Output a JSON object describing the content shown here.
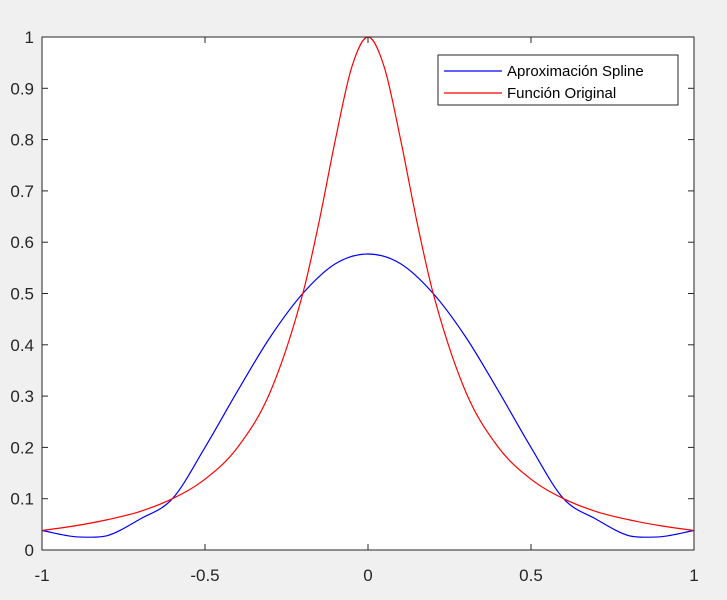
{
  "chart_data": {
    "type": "line",
    "title": "",
    "xlabel": "",
    "ylabel": "",
    "xlim": [
      -1,
      1
    ],
    "ylim": [
      0,
      1
    ],
    "grid": false,
    "legend_position": "top-right",
    "x_ticks": [
      -1,
      -0.5,
      0,
      0.5,
      1
    ],
    "x_tick_labels": [
      "-1",
      "-0.5",
      "0",
      "0.5",
      "1"
    ],
    "y_ticks": [
      0,
      0.1,
      0.2,
      0.3,
      0.4,
      0.5,
      0.6,
      0.7,
      0.8,
      0.9,
      1
    ],
    "y_tick_labels": [
      "0",
      "0.1",
      "0.2",
      "0.3",
      "0.4",
      "0.5",
      "0.6",
      "0.7",
      "0.8",
      "0.9",
      "1"
    ],
    "series": [
      {
        "name": "Aproximación Spline",
        "color": "#0000ff",
        "x": [
          -1,
          -0.9,
          -0.85,
          -0.8,
          -0.7,
          -0.6,
          -0.5,
          -0.4,
          -0.3,
          -0.2,
          -0.1,
          0,
          0.1,
          0.2,
          0.3,
          0.4,
          0.5,
          0.6,
          0.7,
          0.8,
          0.85,
          0.9,
          1
        ],
        "y": [
          0.038,
          0.026,
          0.025,
          0.028,
          0.06,
          0.1,
          0.2,
          0.31,
          0.415,
          0.5,
          0.558,
          0.577,
          0.558,
          0.5,
          0.415,
          0.31,
          0.2,
          0.1,
          0.06,
          0.028,
          0.025,
          0.026,
          0.038
        ]
      },
      {
        "name": "Función Original",
        "color": "#ff0000",
        "x": [
          -1,
          -0.9,
          -0.8,
          -0.7,
          -0.6,
          -0.5,
          -0.4,
          -0.3,
          -0.2,
          -0.15,
          -0.1,
          -0.05,
          0,
          0.05,
          0.1,
          0.15,
          0.2,
          0.3,
          0.4,
          0.5,
          0.6,
          0.7,
          0.8,
          0.9,
          1
        ],
        "y": [
          0.038,
          0.047,
          0.059,
          0.075,
          0.1,
          0.138,
          0.2,
          0.308,
          0.5,
          0.64,
          0.8,
          0.941,
          1,
          0.941,
          0.8,
          0.64,
          0.5,
          0.308,
          0.2,
          0.138,
          0.1,
          0.075,
          0.059,
          0.047,
          0.038
        ]
      }
    ]
  }
}
